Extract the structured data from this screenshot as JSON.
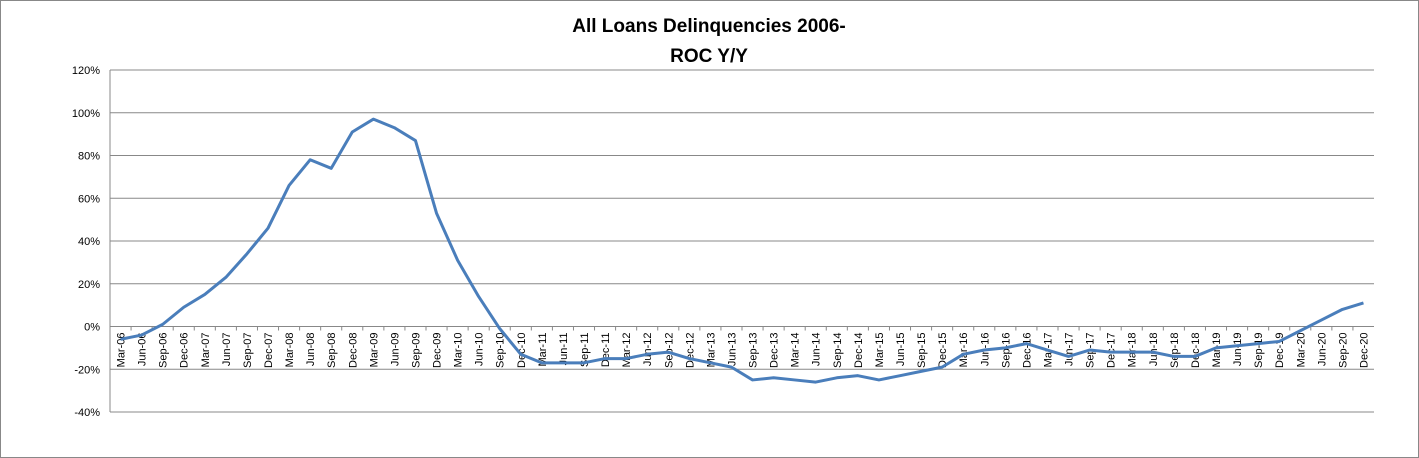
{
  "chart_data": {
    "type": "line",
    "title": [
      "All Loans Delinquencies 2006-",
      "ROC Y/Y"
    ],
    "categories": [
      "Mar-06",
      "Jun-06",
      "Sep-06",
      "Dec-06",
      "Mar-07",
      "Jun-07",
      "Sep-07",
      "Dec-07",
      "Mar-08",
      "Jun-08",
      "Sep-08",
      "Dec-08",
      "Mar-09",
      "Jun-09",
      "Sep-09",
      "Dec-09",
      "Mar-10",
      "Jun-10",
      "Sep-10",
      "Dec-10",
      "Mar-11",
      "Jun-11",
      "Sep-11",
      "Dec-11",
      "Mar-12",
      "Jun-12",
      "Sep-12",
      "Dec-12",
      "Mar-13",
      "Jun-13",
      "Sep-13",
      "Dec-13",
      "Mar-14",
      "Jun-14",
      "Sep-14",
      "Dec-14",
      "Mar-15",
      "Jun-15",
      "Sep-15",
      "Dec-15",
      "Mar-16",
      "Jun-16",
      "Sep-16",
      "Dec-16",
      "Mar-17",
      "Jun-17",
      "Sep-17",
      "Dec-17",
      "Mar-18",
      "Jun-18",
      "Sep-18",
      "Dec-18",
      "Mar-19",
      "Jun-19",
      "Sep-19",
      "Dec-19",
      "Mar-20",
      "Jun-20",
      "Sep-20",
      "Dec-20"
    ],
    "values": [
      -6,
      -4,
      1,
      9,
      15,
      23,
      34,
      46,
      66,
      78,
      74,
      91,
      97,
      93,
      87,
      53,
      31,
      14,
      -1,
      -13,
      -17,
      -17,
      -17,
      -15,
      -15,
      -13,
      -12,
      -15,
      -17,
      -19,
      -25,
      -24,
      -25,
      -26,
      -24,
      -23,
      -25,
      -23,
      -21,
      -19,
      -13,
      -11,
      -10,
      -8,
      -11,
      -14,
      -11,
      -12,
      -12,
      -12,
      -14,
      -14,
      -10,
      -9,
      -8,
      -7,
      -2,
      3,
      8,
      11
    ],
    "color": "#4a7ebb",
    "ylim": [
      -40,
      120
    ],
    "yticks": [
      {
        "value": -40,
        "label": "-40%"
      },
      {
        "value": -20,
        "label": "-20%"
      },
      {
        "value": 0,
        "label": "0%"
      },
      {
        "value": 20,
        "label": "20%"
      },
      {
        "value": 40,
        "label": "40%"
      },
      {
        "value": 60,
        "label": "60%"
      },
      {
        "value": 80,
        "label": "80%"
      },
      {
        "value": 100,
        "label": "100%"
      },
      {
        "value": 120,
        "label": "120%"
      }
    ],
    "grid": true
  }
}
